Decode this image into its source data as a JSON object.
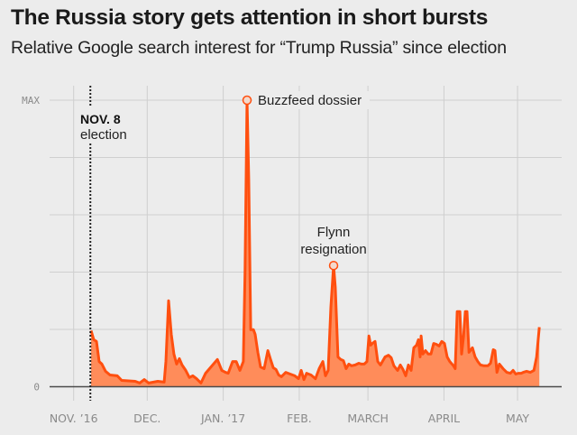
{
  "header": {
    "title": "The Russia story gets attention in short bursts",
    "subtitle": "Relative Google search interest for “Trump Russia” since election"
  },
  "colors": {
    "background": "#ececec",
    "line": "#ff4f0f",
    "fill": "#ff8c5a",
    "grid": "#cfcfcf",
    "axis": "#4a4a4a",
    "marker_fill": "#f3d9cc"
  },
  "chart_data": {
    "type": "area",
    "title": "The Russia story gets attention in short bursts",
    "subtitle": "Relative Google search interest for “Trump Russia” since election",
    "xlabel": "",
    "ylabel": "",
    "x_unit": "days since Nov. 1, 2016",
    "xlim": [
      -10,
      200
    ],
    "ylim": [
      0,
      100
    ],
    "grid": true,
    "y_ticks": [
      {
        "value": 100,
        "label": "MAX"
      },
      {
        "value": 80,
        "label": ""
      },
      {
        "value": 60,
        "label": ""
      },
      {
        "value": 40,
        "label": ""
      },
      {
        "value": 20,
        "label": ""
      },
      {
        "value": 0,
        "label": "0"
      }
    ],
    "x_ticks": [
      {
        "value": 0,
        "label": "NOV. ’16"
      },
      {
        "value": 30,
        "label": "DEC."
      },
      {
        "value": 61,
        "label": "JAN. ’17"
      },
      {
        "value": 92,
        "label": "FEB."
      },
      {
        "value": 120,
        "label": "MARCH"
      },
      {
        "value": 151,
        "label": "APRIL"
      },
      {
        "value": 181,
        "label": "MAY"
      }
    ],
    "reference_line": {
      "x": 7,
      "label_bold": "NOV. 8",
      "label": "election"
    },
    "annotations": [
      {
        "x": 70.7,
        "y": 100,
        "text": "Buzzfeed dossier"
      },
      {
        "x": 106,
        "y": 42.3,
        "line1": "Flynn",
        "line2": "resignation"
      }
    ],
    "series": [
      {
        "name": "Trump Russia",
        "points": [
          [
            7.1,
            19.6
          ],
          [
            8.2,
            16.4
          ],
          [
            9.3,
            15.8
          ],
          [
            10.4,
            8.8
          ],
          [
            11.5,
            7.9
          ],
          [
            13,
            5.4
          ],
          [
            14.8,
            4.1
          ],
          [
            17.8,
            3.8
          ],
          [
            19.6,
            2.2
          ],
          [
            25.1,
            1.9
          ],
          [
            26.9,
            1.3
          ],
          [
            28.8,
            2.5
          ],
          [
            30.6,
            1.3
          ],
          [
            34.3,
            1.9
          ],
          [
            36.9,
            1.6
          ],
          [
            37.6,
            8.8
          ],
          [
            38.7,
            30
          ],
          [
            39.8,
            18.3
          ],
          [
            40.9,
            11.4
          ],
          [
            42,
            7.9
          ],
          [
            43.1,
            9.8
          ],
          [
            44.2,
            7.6
          ],
          [
            45.7,
            5.7
          ],
          [
            47.2,
            3.2
          ],
          [
            48.6,
            3.8
          ],
          [
            50.1,
            2.8
          ],
          [
            51.9,
            1.3
          ],
          [
            53.8,
            4.7
          ],
          [
            58.6,
            9.5
          ],
          [
            60.4,
            5.7
          ],
          [
            61.9,
            5
          ],
          [
            63,
            4.7
          ],
          [
            64.8,
            8.8
          ],
          [
            66.3,
            8.8
          ],
          [
            67.8,
            5.7
          ],
          [
            69.2,
            8.8
          ],
          [
            69.9,
            40.4
          ],
          [
            70.7,
            100
          ],
          [
            71.4,
            72.6
          ],
          [
            72.2,
            19.9
          ],
          [
            73.3,
            19.9
          ],
          [
            74,
            18.3
          ],
          [
            75.1,
            12
          ],
          [
            76.2,
            6.9
          ],
          [
            77.7,
            6.3
          ],
          [
            79.2,
            12.6
          ],
          [
            80.3,
            9.5
          ],
          [
            81.4,
            6.6
          ],
          [
            82.5,
            6
          ],
          [
            83.6,
            4.1
          ],
          [
            84.7,
            3.5
          ],
          [
            86.5,
            5
          ],
          [
            88.3,
            4.4
          ],
          [
            90.2,
            3.8
          ],
          [
            91.7,
            2.8
          ],
          [
            92.8,
            5.7
          ],
          [
            93.9,
            2.5
          ],
          [
            95,
            4.7
          ],
          [
            96.8,
            4.1
          ],
          [
            98.6,
            2.8
          ],
          [
            100.1,
            6.3
          ],
          [
            101.6,
            8.8
          ],
          [
            102.7,
            3.8
          ],
          [
            103.8,
            5.7
          ],
          [
            104.9,
            27.8
          ],
          [
            106,
            42.3
          ],
          [
            106.7,
            34.7
          ],
          [
            107.8,
            10.4
          ],
          [
            108.9,
            9.5
          ],
          [
            110,
            9.1
          ],
          [
            111.1,
            6.3
          ],
          [
            112.2,
            7.9
          ],
          [
            113.3,
            7.3
          ],
          [
            114.8,
            7.6
          ],
          [
            116.3,
            8.2
          ],
          [
            117.4,
            7.9
          ],
          [
            118.5,
            7.9
          ],
          [
            119.6,
            8.8
          ],
          [
            120.4,
            17.7
          ],
          [
            121.1,
            14.5
          ],
          [
            121.8,
            15.1
          ],
          [
            122.9,
            15.8
          ],
          [
            124,
            8.8
          ],
          [
            125.1,
            7.6
          ],
          [
            127,
            10.4
          ],
          [
            128.4,
            11
          ],
          [
            129.5,
            10.1
          ],
          [
            130.6,
            7.3
          ],
          [
            132.1,
            5.7
          ],
          [
            133.2,
            7.6
          ],
          [
            134.3,
            6
          ],
          [
            135.4,
            3.8
          ],
          [
            136.5,
            7.6
          ],
          [
            137.6,
            5.7
          ],
          [
            138.7,
            13.6
          ],
          [
            139.8,
            14.5
          ],
          [
            140.6,
            16.4
          ],
          [
            141.3,
            10.4
          ],
          [
            141.7,
            17.7
          ],
          [
            142.4,
            11.4
          ],
          [
            143.5,
            12.6
          ],
          [
            144.6,
            11.4
          ],
          [
            145.7,
            11.4
          ],
          [
            146.8,
            15.1
          ],
          [
            147.9,
            14.8
          ],
          [
            149,
            14.2
          ],
          [
            150.1,
            15.8
          ],
          [
            151.2,
            15.1
          ],
          [
            152.3,
            10.4
          ],
          [
            153.4,
            8.8
          ],
          [
            154.9,
            7.3
          ],
          [
            155.6,
            6.3
          ],
          [
            156.4,
            26.2
          ],
          [
            157.5,
            26.2
          ],
          [
            158.2,
            11.4
          ],
          [
            159,
            17.7
          ],
          [
            159.7,
            26.2
          ],
          [
            160.4,
            26.2
          ],
          [
            161.2,
            12
          ],
          [
            162.6,
            13.6
          ],
          [
            163.7,
            10.4
          ],
          [
            164.8,
            8.8
          ],
          [
            165.9,
            7.6
          ],
          [
            167.4,
            7.3
          ],
          [
            168.9,
            7.3
          ],
          [
            170,
            8.2
          ],
          [
            171.1,
            12.9
          ],
          [
            171.8,
            12.6
          ],
          [
            172.6,
            5
          ],
          [
            173.6,
            7.9
          ],
          [
            175.1,
            6.3
          ],
          [
            176.6,
            5
          ],
          [
            178.1,
            4.7
          ],
          [
            179.2,
            5.7
          ],
          [
            180.3,
            4.4
          ],
          [
            181.4,
            4.7
          ],
          [
            182.5,
            4.7
          ],
          [
            183.3,
            5
          ],
          [
            184.7,
            5.4
          ],
          [
            186.2,
            5
          ],
          [
            187.7,
            5.7
          ],
          [
            188.8,
            10.4
          ],
          [
            189.9,
            20.8
          ]
        ]
      }
    ]
  }
}
